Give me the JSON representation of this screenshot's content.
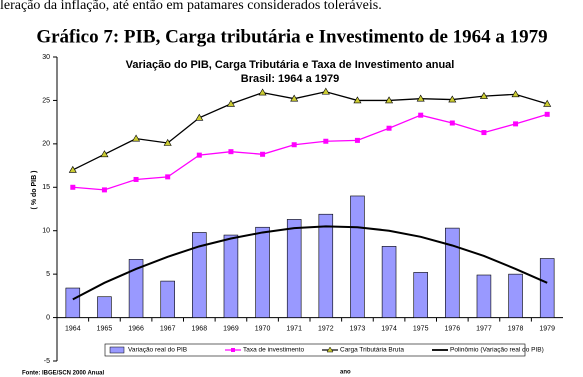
{
  "intro_text": "leração da inflação, até então em patamares considerados toleráveis.",
  "heading": "Gráfico 7: PIB, Carga tributária e Investimento de 1964 a 1979",
  "chart_data": {
    "type": "combo",
    "title": "Variação do PIB, Carga Tributária e Taxa de Investimento anual",
    "subtitle": "Brasil: 1964 a 1979",
    "y_label": "( % do PIB )",
    "x_label": "ano",
    "categories": [
      "1964",
      "1965",
      "1966",
      "1967",
      "1968",
      "1969",
      "1970",
      "1971",
      "1972",
      "1973",
      "1974",
      "1975",
      "1976",
      "1977",
      "1978",
      "1979"
    ],
    "series": [
      {
        "name": "Variação real do PIB",
        "type": "bar",
        "color": "#9999ff",
        "values": [
          3.4,
          2.4,
          6.7,
          4.2,
          9.8,
          9.5,
          10.4,
          11.3,
          11.9,
          14.0,
          8.2,
          5.2,
          10.3,
          4.9,
          5.0,
          6.8
        ]
      },
      {
        "name": "Taxa de investimento",
        "type": "line",
        "marker": "square",
        "color": "#ff00ff",
        "values": [
          15.0,
          14.7,
          15.9,
          16.2,
          18.7,
          19.1,
          18.8,
          19.9,
          20.3,
          20.4,
          21.8,
          23.3,
          22.4,
          21.3,
          22.3,
          23.4
        ]
      },
      {
        "name": "Carga Tributária Bruta",
        "type": "line",
        "marker": "triangle",
        "color": "#000000",
        "marker_color": "#cccc33",
        "values": [
          17.0,
          18.8,
          20.6,
          20.1,
          23.0,
          24.6,
          25.9,
          25.2,
          26.0,
          25.0,
          25.0,
          25.2,
          25.1,
          25.5,
          25.7,
          24.6
        ]
      },
      {
        "name": "Polinômio (Variação real do PIB)",
        "type": "line",
        "marker": "none",
        "color": "#000000",
        "values": [
          2.1,
          4.0,
          5.6,
          7.0,
          8.2,
          9.1,
          9.8,
          10.3,
          10.5,
          10.4,
          10.0,
          9.3,
          8.3,
          7.1,
          5.6,
          4.0
        ]
      }
    ],
    "ylim": [
      -5,
      30
    ],
    "yticks": [
      -5,
      0,
      5,
      10,
      15,
      20,
      25,
      30
    ]
  },
  "source": "Fonte: IBGE/SCN 2000 Anual"
}
